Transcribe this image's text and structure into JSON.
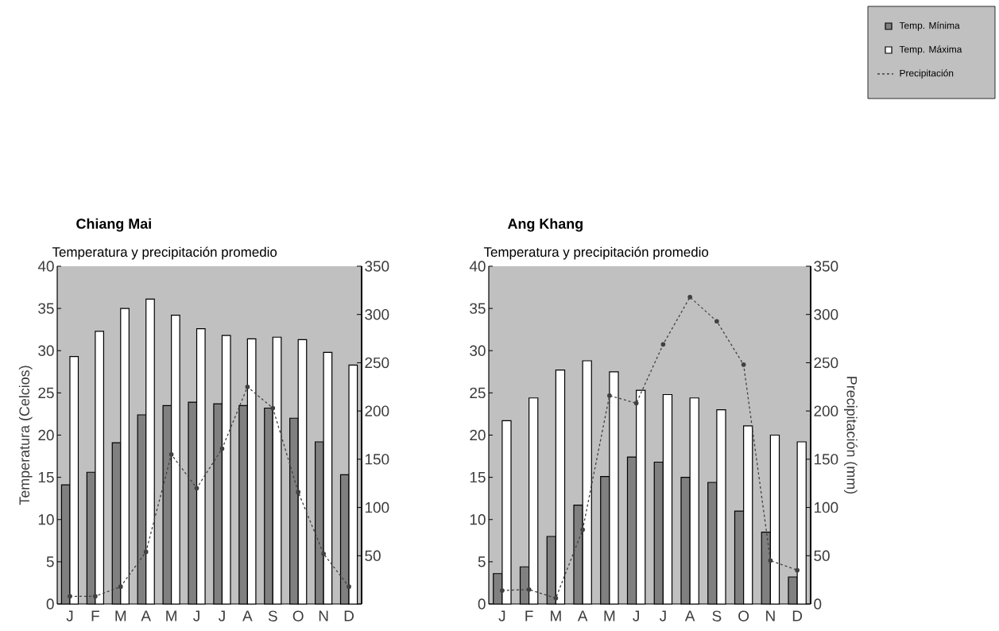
{
  "chart_data": [
    {
      "type": "bar",
      "title": "Chiang Mai",
      "subtitle": "Temperatura y precipitación promedio",
      "ylabel": "Temperatura (Celcios)",
      "categories": [
        "J",
        "F",
        "M",
        "A",
        "M",
        "J",
        "J",
        "A",
        "S",
        "O",
        "N",
        "D"
      ],
      "series": [
        {
          "color": "#808080",
          "values": [
            14.1,
            15.6,
            19.1,
            22.4,
            23.5,
            23.9,
            23.7,
            23.5,
            23.2,
            22.0,
            19.2,
            15.3
          ]
        },
        {
          "color": "#ffffff",
          "values": [
            29.3,
            32.3,
            35.0,
            36.1,
            34.2,
            32.6,
            31.8,
            31.4,
            31.6,
            31.3,
            29.8,
            28.3
          ]
        },
        {
          "type": "line",
          "axis": "y2",
          "color": "#404040",
          "marker": "circle",
          "line_style": "dashed",
          "values": [
            8,
            8,
            18,
            54,
            155,
            120,
            161,
            225,
            203,
            116,
            52,
            18
          ]
        }
      ],
      "ylim": [
        0,
        40
      ],
      "yticks": [
        0,
        5,
        10,
        15,
        20,
        25,
        30,
        35,
        40
      ],
      "y2lim": [
        0,
        350
      ],
      "y2ticks": [
        {
          "value": 0,
          "label": null
        },
        50,
        100,
        150,
        200,
        250,
        300,
        350
      ]
    },
    {
      "type": "bar",
      "title": "Ang Khang",
      "subtitle": "Temperatura y precipitación promedio",
      "y2label": "Precipitación  (mm)",
      "categories": [
        "J",
        "F",
        "M",
        "A",
        "M",
        "J",
        "J",
        "A",
        "S",
        "O",
        "N",
        "D"
      ],
      "series": [
        {
          "name": "Temp. Mínima",
          "color": "#808080",
          "values": [
            3.6,
            4.4,
            8.0,
            11.7,
            15.1,
            17.4,
            16.8,
            15.0,
            14.4,
            11.0,
            8.5,
            3.2
          ]
        },
        {
          "name": "Temp. Máxima",
          "color": "#ffffff",
          "values": [
            21.7,
            24.4,
            27.7,
            28.8,
            27.5,
            25.3,
            24.8,
            24.4,
            23.0,
            21.1,
            20.0,
            19.2
          ]
        },
        {
          "name": "Precipitación",
          "type": "line",
          "axis": "y2",
          "color": "#404040",
          "marker": "circle",
          "line_style": "dashed",
          "values": [
            14,
            15,
            6,
            77,
            216,
            208,
            269,
            318,
            293,
            248,
            45,
            35
          ]
        }
      ],
      "ylim": [
        0,
        40
      ],
      "yticks": [
        0,
        5,
        10,
        15,
        20,
        25,
        30,
        35,
        40
      ],
      "y2lim": [
        0,
        350
      ],
      "y2ticks": [
        0,
        50,
        100,
        150,
        200,
        250,
        300,
        350
      ],
      "legend": "top right"
    }
  ]
}
